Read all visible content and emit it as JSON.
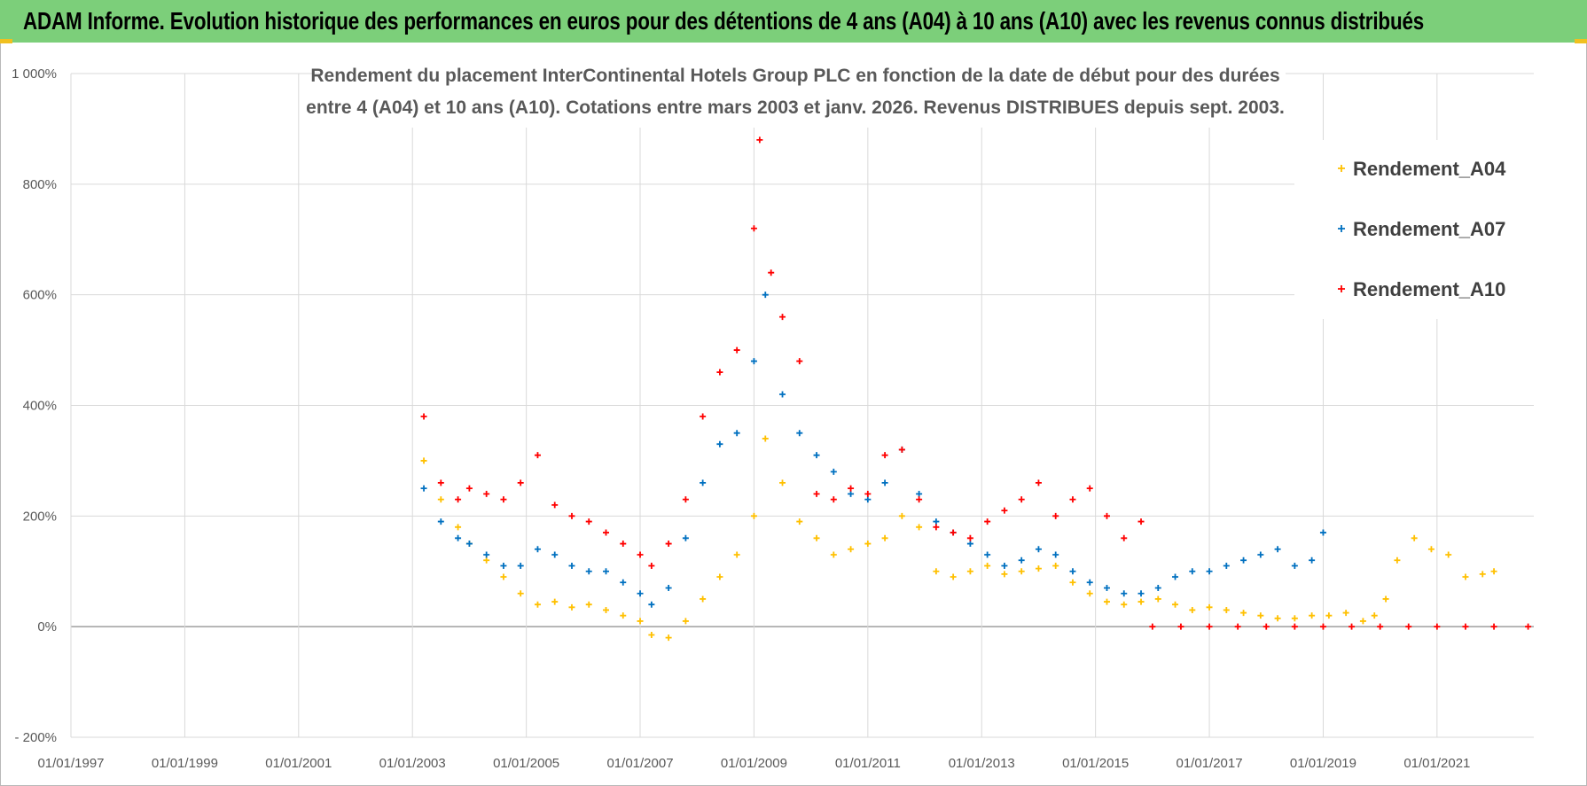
{
  "header": {
    "title": "ADAM Informe. Evolution historique des performances en euros pour des détentions de 4 ans (A04) à 10 ans (A10) avec les revenus connus distribués"
  },
  "colors": {
    "banner": "#7ccf7a",
    "A04": "#ffc000",
    "A07": "#0070c0",
    "A10": "#ff0000",
    "grid": "#d9d9d9",
    "zero": "#a6a6a6"
  },
  "chart_data": {
    "type": "scatter",
    "title_lines": [
      "Rendement du placement InterContinental Hotels Group PLC en fonction de la date de début pour des durées",
      "entre 4 (A04) et 10 ans (A10).  Cotations entre mars 2003 et janv. 2026. Revenus DISTRIBUES depuis sept. 2003."
    ],
    "x_range": [
      1997.0,
      2022.7
    ],
    "x_ticks": [
      {
        "value": 1997,
        "label": "01/01/1997"
      },
      {
        "value": 1999,
        "label": "01/01/1999"
      },
      {
        "value": 2001,
        "label": "01/01/2001"
      },
      {
        "value": 2003,
        "label": "01/01/2003"
      },
      {
        "value": 2005,
        "label": "01/01/2005"
      },
      {
        "value": 2007,
        "label": "01/01/2007"
      },
      {
        "value": 2009,
        "label": "01/01/2009"
      },
      {
        "value": 2011,
        "label": "01/01/2011"
      },
      {
        "value": 2013,
        "label": "01/01/2013"
      },
      {
        "value": 2015,
        "label": "01/01/2015"
      },
      {
        "value": 2017,
        "label": "01/01/2017"
      },
      {
        "value": 2019,
        "label": "01/01/2019"
      },
      {
        "value": 2021,
        "label": "01/01/2021"
      }
    ],
    "y_range": [
      -200,
      1000
    ],
    "y_ticks": [
      {
        "value": 1000,
        "label": "1 000%"
      },
      {
        "value": 800,
        "label": "800%"
      },
      {
        "value": 600,
        "label": "600%"
      },
      {
        "value": 400,
        "label": "400%"
      },
      {
        "value": 200,
        "label": "200%"
      },
      {
        "value": 0,
        "label": "0%"
      },
      {
        "value": -200,
        "label": "- 200%"
      }
    ],
    "legend_position": "top-right",
    "series": [
      {
        "name": "Rendement_A04",
        "color": "#ffc000",
        "x": [
          2003.2,
          2003.5,
          2003.8,
          2004.0,
          2004.3,
          2004.6,
          2004.9,
          2005.2,
          2005.5,
          2005.8,
          2006.1,
          2006.4,
          2006.7,
          2007.0,
          2007.2,
          2007.5,
          2007.8,
          2008.1,
          2008.4,
          2008.7,
          2009.0,
          2009.2,
          2009.5,
          2009.8,
          2010.1,
          2010.4,
          2010.7,
          2011.0,
          2011.3,
          2011.6,
          2011.9,
          2012.2,
          2012.5,
          2012.8,
          2013.1,
          2013.4,
          2013.7,
          2014.0,
          2014.3,
          2014.6,
          2014.9,
          2015.2,
          2015.5,
          2015.8,
          2016.1,
          2016.4,
          2016.7,
          2017.0,
          2017.3,
          2017.6,
          2017.9,
          2018.2,
          2018.5,
          2018.8,
          2019.1,
          2019.4,
          2019.7,
          2019.9,
          2020.1,
          2020.3,
          2020.6,
          2020.9,
          2021.2,
          2021.5,
          2021.8,
          2022.0
        ],
        "y": [
          300,
          230,
          180,
          150,
          120,
          90,
          60,
          40,
          45,
          35,
          40,
          30,
          20,
          10,
          -15,
          -20,
          10,
          50,
          90,
          130,
          200,
          340,
          260,
          190,
          160,
          130,
          140,
          150,
          160,
          200,
          180,
          100,
          90,
          100,
          110,
          95,
          100,
          105,
          110,
          80,
          60,
          45,
          40,
          45,
          50,
          40,
          30,
          35,
          30,
          25,
          20,
          15,
          15,
          20,
          20,
          25,
          10,
          20,
          50,
          120,
          160,
          140,
          130,
          90,
          95,
          100
        ]
      },
      {
        "name": "Rendement_A07",
        "color": "#0070c0",
        "x": [
          2003.2,
          2003.5,
          2003.8,
          2004.0,
          2004.3,
          2004.6,
          2004.9,
          2005.2,
          2005.5,
          2005.8,
          2006.1,
          2006.4,
          2006.7,
          2007.0,
          2007.2,
          2007.5,
          2007.8,
          2008.1,
          2008.4,
          2008.7,
          2009.0,
          2009.2,
          2009.5,
          2009.8,
          2010.1,
          2010.4,
          2010.7,
          2011.0,
          2011.3,
          2011.6,
          2011.9,
          2012.2,
          2012.5,
          2012.8,
          2013.1,
          2013.4,
          2013.7,
          2014.0,
          2014.3,
          2014.6,
          2014.9,
          2015.2,
          2015.5,
          2015.8,
          2016.1,
          2016.4,
          2016.7,
          2017.0,
          2017.3,
          2017.6,
          2017.9,
          2018.2,
          2018.5,
          2018.8,
          2019.0
        ],
        "y": [
          250,
          190,
          160,
          150,
          130,
          110,
          110,
          140,
          130,
          110,
          100,
          100,
          80,
          60,
          40,
          70,
          160,
          260,
          330,
          350,
          480,
          600,
          420,
          350,
          310,
          280,
          240,
          230,
          260,
          320,
          240,
          190,
          170,
          150,
          130,
          110,
          120,
          140,
          130,
          100,
          80,
          70,
          60,
          60,
          70,
          90,
          100,
          100,
          110,
          120,
          130,
          140,
          110,
          120,
          170
        ]
      },
      {
        "name": "Rendement_A10",
        "color": "#ff0000",
        "x": [
          2003.2,
          2003.5,
          2003.8,
          2004.0,
          2004.3,
          2004.6,
          2004.9,
          2005.2,
          2005.5,
          2005.8,
          2006.1,
          2006.4,
          2006.7,
          2007.0,
          2007.2,
          2007.5,
          2007.8,
          2008.1,
          2008.4,
          2008.7,
          2009.0,
          2009.1,
          2009.3,
          2009.5,
          2009.8,
          2010.1,
          2010.4,
          2010.7,
          2011.0,
          2011.3,
          2011.6,
          2011.9,
          2012.2,
          2012.5,
          2012.8,
          2013.1,
          2013.4,
          2013.7,
          2014.0,
          2014.3,
          2014.6,
          2014.9,
          2015.2,
          2015.5,
          2015.8,
          2016.0,
          2016.5,
          2017.0,
          2017.5,
          2018.0,
          2018.5,
          2019.0,
          2019.5,
          2020.0,
          2020.5,
          2021.0,
          2021.5,
          2022.0,
          2022.6
        ],
        "y": [
          380,
          260,
          230,
          250,
          240,
          230,
          260,
          310,
          220,
          200,
          190,
          170,
          150,
          130,
          110,
          150,
          230,
          380,
          460,
          500,
          720,
          880,
          640,
          560,
          480,
          240,
          230,
          250,
          240,
          310,
          320,
          230,
          180,
          170,
          160,
          190,
          210,
          230,
          260,
          200,
          230,
          250,
          200,
          160,
          190,
          0,
          0,
          0,
          0,
          0,
          0,
          0,
          0,
          0,
          0,
          0,
          0,
          0,
          0
        ]
      }
    ]
  }
}
